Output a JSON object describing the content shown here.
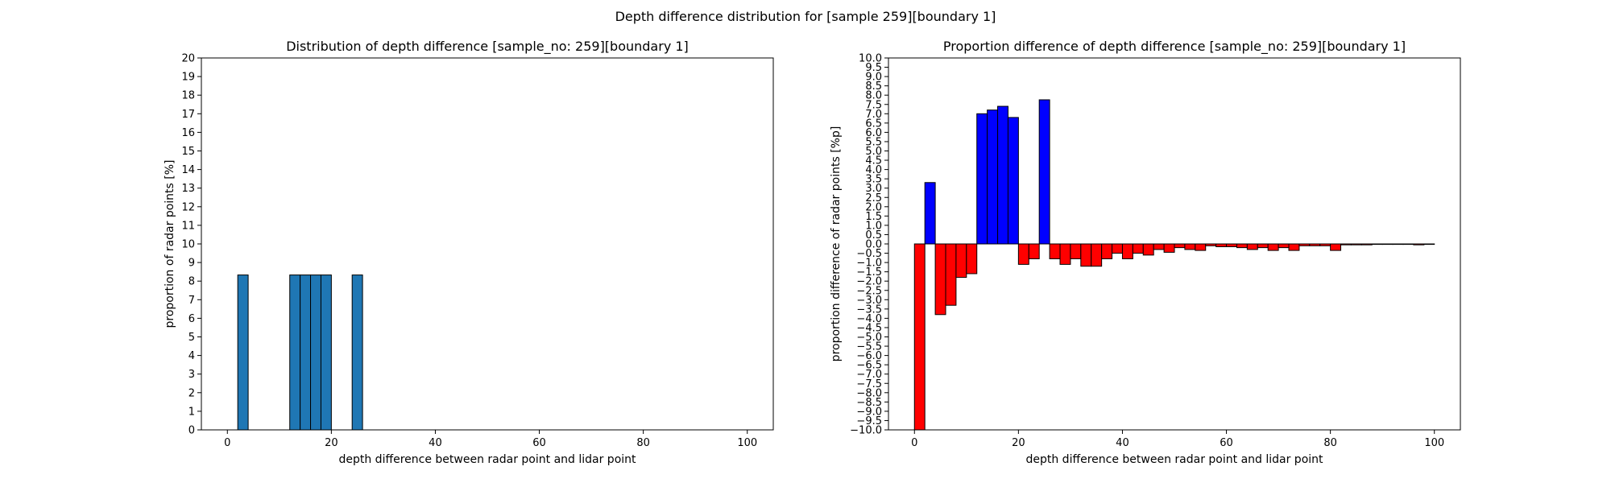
{
  "figure": {
    "suptitle": "Depth difference distribution for [sample 259][boundary 1]"
  },
  "chart_data": [
    {
      "type": "bar",
      "title": "Distribution of depth difference [sample_no: 259][boundary 1]",
      "xlabel": "depth difference between radar point and lidar point",
      "ylabel": "proportion of radar points [%]",
      "xlim": [
        -5,
        105
      ],
      "ylim": [
        0,
        20
      ],
      "xticks": [
        0,
        20,
        40,
        60,
        80,
        100
      ],
      "yticks": [
        0,
        1,
        2,
        3,
        4,
        5,
        6,
        7,
        8,
        9,
        10,
        11,
        12,
        13,
        14,
        15,
        16,
        17,
        18,
        19,
        20
      ],
      "bar_width": 2,
      "color": "#1f77b4",
      "bars": [
        {
          "x": 3,
          "value": 8.33
        },
        {
          "x": 13,
          "value": 8.33
        },
        {
          "x": 15,
          "value": 8.33
        },
        {
          "x": 17,
          "value": 8.33
        },
        {
          "x": 19,
          "value": 8.33
        },
        {
          "x": 25,
          "value": 8.33
        }
      ]
    },
    {
      "type": "bar",
      "title": "Proportion difference of depth difference [sample_no: 259][boundary 1]",
      "xlabel": "depth difference between radar point and lidar point",
      "ylabel": "proportion difference of radar points [%p]",
      "xlim": [
        -5,
        105
      ],
      "ylim": [
        -10,
        10
      ],
      "xticks": [
        0,
        20,
        40,
        60,
        80,
        100
      ],
      "ytick_step": 0.5,
      "bar_width": 2,
      "positive_color": "#0000ff",
      "negative_color": "#ff0000",
      "bars": [
        {
          "x": 1,
          "value": -10.0
        },
        {
          "x": 3,
          "value": 3.3
        },
        {
          "x": 5,
          "value": -3.8
        },
        {
          "x": 7,
          "value": -3.3
        },
        {
          "x": 9,
          "value": -1.8
        },
        {
          "x": 11,
          "value": -1.6
        },
        {
          "x": 13,
          "value": 7.0
        },
        {
          "x": 15,
          "value": 7.2
        },
        {
          "x": 17,
          "value": 7.4
        },
        {
          "x": 19,
          "value": 6.8
        },
        {
          "x": 21,
          "value": -1.1
        },
        {
          "x": 23,
          "value": -0.8
        },
        {
          "x": 25,
          "value": 7.75
        },
        {
          "x": 27,
          "value": -0.8
        },
        {
          "x": 29,
          "value": -1.1
        },
        {
          "x": 31,
          "value": -0.8
        },
        {
          "x": 33,
          "value": -1.2
        },
        {
          "x": 35,
          "value": -1.2
        },
        {
          "x": 37,
          "value": -0.8
        },
        {
          "x": 39,
          "value": -0.5
        },
        {
          "x": 41,
          "value": -0.8
        },
        {
          "x": 43,
          "value": -0.5
        },
        {
          "x": 45,
          "value": -0.6
        },
        {
          "x": 47,
          "value": -0.3
        },
        {
          "x": 49,
          "value": -0.45
        },
        {
          "x": 51,
          "value": -0.2
        },
        {
          "x": 53,
          "value": -0.3
        },
        {
          "x": 55,
          "value": -0.35
        },
        {
          "x": 57,
          "value": -0.1
        },
        {
          "x": 59,
          "value": -0.15
        },
        {
          "x": 61,
          "value": -0.15
        },
        {
          "x": 63,
          "value": -0.2
        },
        {
          "x": 65,
          "value": -0.3
        },
        {
          "x": 67,
          "value": -0.2
        },
        {
          "x": 69,
          "value": -0.35
        },
        {
          "x": 71,
          "value": -0.2
        },
        {
          "x": 73,
          "value": -0.35
        },
        {
          "x": 75,
          "value": -0.1
        },
        {
          "x": 77,
          "value": -0.1
        },
        {
          "x": 79,
          "value": -0.1
        },
        {
          "x": 81,
          "value": -0.35
        },
        {
          "x": 83,
          "value": -0.05
        },
        {
          "x": 85,
          "value": -0.05
        },
        {
          "x": 87,
          "value": -0.05
        },
        {
          "x": 89,
          "value": -0.02
        },
        {
          "x": 91,
          "value": -0.02
        },
        {
          "x": 93,
          "value": -0.02
        },
        {
          "x": 95,
          "value": -0.02
        },
        {
          "x": 97,
          "value": -0.05
        },
        {
          "x": 99,
          "value": -0.02
        }
      ]
    }
  ]
}
